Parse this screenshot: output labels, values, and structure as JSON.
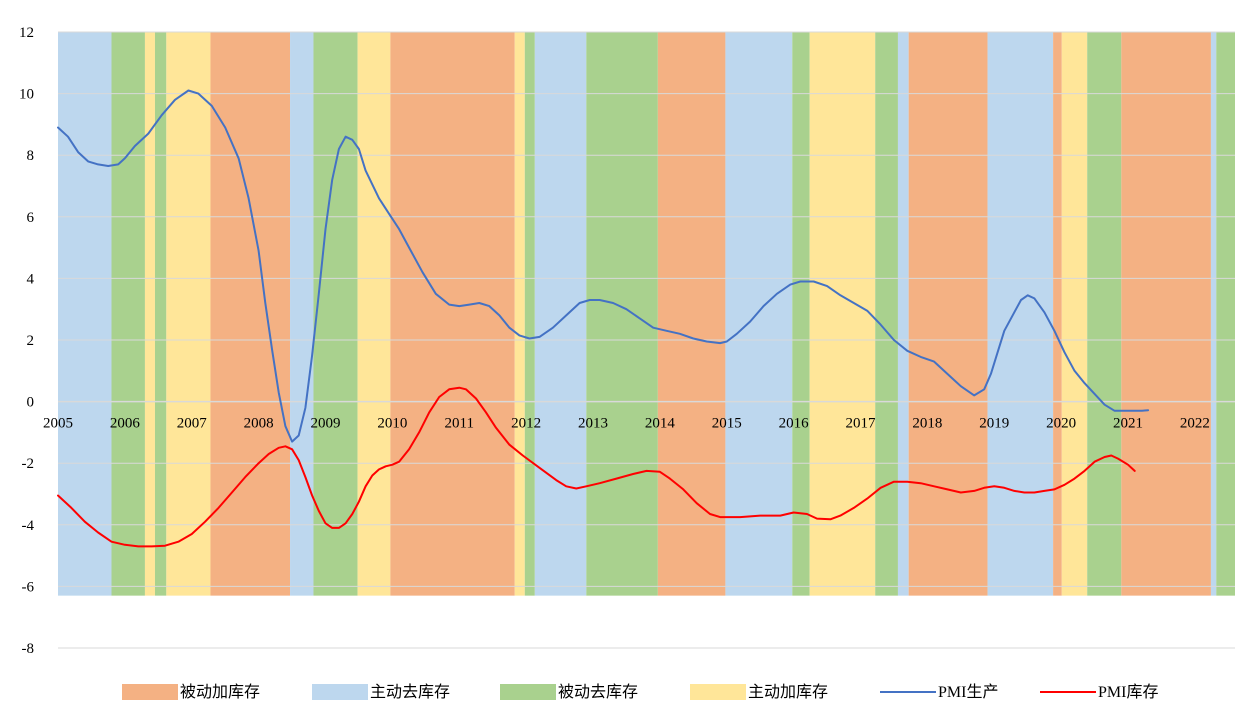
{
  "chart_data": {
    "type": "line",
    "title": "",
    "xlabel": "",
    "ylabel": "",
    "x_range": [
      2005.0,
      2022.6
    ],
    "ylim": [
      -8,
      12
    ],
    "y_ticks": [
      12,
      10,
      8,
      6,
      4,
      2,
      0,
      -2,
      -4,
      -6,
      -8
    ],
    "x_ticks": [
      "2005",
      "2006",
      "2007",
      "2008",
      "2009",
      "2010",
      "2011",
      "2012",
      "2013",
      "2014",
      "2015",
      "2016",
      "2017",
      "2018",
      "2019",
      "2020",
      "2021",
      "2022"
    ],
    "colors": {
      "passive_build": "#F4B183",
      "active_destock": "#BDD7EE",
      "passive_destock": "#A9D18E",
      "active_build": "#FFE699",
      "pmi_production": "#4472C4",
      "pmi_inventory": "#FF0000"
    },
    "phases": [
      {
        "start": 2005.0,
        "end": 2005.8,
        "phase": "active_destock"
      },
      {
        "start": 2005.8,
        "end": 2006.3,
        "phase": "passive_destock"
      },
      {
        "start": 2006.3,
        "end": 2006.45,
        "phase": "active_build"
      },
      {
        "start": 2006.45,
        "end": 2006.62,
        "phase": "passive_destock"
      },
      {
        "start": 2006.62,
        "end": 2007.28,
        "phase": "active_build"
      },
      {
        "start": 2007.28,
        "end": 2008.47,
        "phase": "passive_build"
      },
      {
        "start": 2008.47,
        "end": 2008.82,
        "phase": "active_destock"
      },
      {
        "start": 2008.82,
        "end": 2009.48,
        "phase": "passive_destock"
      },
      {
        "start": 2009.48,
        "end": 2009.97,
        "phase": "active_build"
      },
      {
        "start": 2009.97,
        "end": 2011.83,
        "phase": "passive_build"
      },
      {
        "start": 2011.83,
        "end": 2011.98,
        "phase": "active_build"
      },
      {
        "start": 2011.98,
        "end": 2012.13,
        "phase": "passive_destock"
      },
      {
        "start": 2012.13,
        "end": 2012.9,
        "phase": "active_destock"
      },
      {
        "start": 2012.9,
        "end": 2013.97,
        "phase": "passive_destock"
      },
      {
        "start": 2013.97,
        "end": 2014.98,
        "phase": "passive_build"
      },
      {
        "start": 2014.98,
        "end": 2015.98,
        "phase": "active_destock"
      },
      {
        "start": 2015.98,
        "end": 2016.24,
        "phase": "passive_destock"
      },
      {
        "start": 2016.24,
        "end": 2017.22,
        "phase": "active_build"
      },
      {
        "start": 2017.22,
        "end": 2017.56,
        "phase": "passive_destock"
      },
      {
        "start": 2017.56,
        "end": 2017.72,
        "phase": "active_destock"
      },
      {
        "start": 2017.72,
        "end": 2018.9,
        "phase": "passive_build"
      },
      {
        "start": 2018.9,
        "end": 2019.88,
        "phase": "active_destock"
      },
      {
        "start": 2019.88,
        "end": 2020.01,
        "phase": "passive_build"
      },
      {
        "start": 2020.01,
        "end": 2020.39,
        "phase": "active_build"
      },
      {
        "start": 2020.39,
        "end": 2020.9,
        "phase": "passive_destock"
      },
      {
        "start": 2020.9,
        "end": 2022.24,
        "phase": "passive_build"
      },
      {
        "start": 2022.24,
        "end": 2022.32,
        "phase": "active_destock"
      },
      {
        "start": 2022.32,
        "end": 2022.6,
        "phase": "passive_destock"
      }
    ],
    "series": [
      {
        "name": "PMI生产",
        "key": "pmi_production",
        "points": [
          [
            2005.0,
            8.9
          ],
          [
            2005.15,
            8.6
          ],
          [
            2005.3,
            8.1
          ],
          [
            2005.45,
            7.8
          ],
          [
            2005.6,
            7.7
          ],
          [
            2005.75,
            7.65
          ],
          [
            2005.9,
            7.7
          ],
          [
            2006.0,
            7.9
          ],
          [
            2006.15,
            8.3
          ],
          [
            2006.35,
            8.7
          ],
          [
            2006.55,
            9.3
          ],
          [
            2006.75,
            9.8
          ],
          [
            2006.95,
            10.1
          ],
          [
            2007.1,
            10.0
          ],
          [
            2007.3,
            9.6
          ],
          [
            2007.5,
            8.9
          ],
          [
            2007.7,
            7.9
          ],
          [
            2007.85,
            6.6
          ],
          [
            2008.0,
            4.9
          ],
          [
            2008.1,
            3.2
          ],
          [
            2008.2,
            1.7
          ],
          [
            2008.3,
            0.3
          ],
          [
            2008.4,
            -0.8
          ],
          [
            2008.5,
            -1.3
          ],
          [
            2008.6,
            -1.1
          ],
          [
            2008.7,
            -0.2
          ],
          [
            2008.8,
            1.5
          ],
          [
            2008.9,
            3.5
          ],
          [
            2009.0,
            5.6
          ],
          [
            2009.1,
            7.2
          ],
          [
            2009.2,
            8.2
          ],
          [
            2009.3,
            8.6
          ],
          [
            2009.4,
            8.5
          ],
          [
            2009.5,
            8.2
          ],
          [
            2009.6,
            7.5
          ],
          [
            2009.8,
            6.6
          ],
          [
            2009.95,
            6.1
          ],
          [
            2010.1,
            5.6
          ],
          [
            2010.25,
            5.0
          ],
          [
            2010.45,
            4.2
          ],
          [
            2010.65,
            3.5
          ],
          [
            2010.85,
            3.15
          ],
          [
            2011.0,
            3.1
          ],
          [
            2011.15,
            3.15
          ],
          [
            2011.3,
            3.2
          ],
          [
            2011.45,
            3.1
          ],
          [
            2011.6,
            2.8
          ],
          [
            2011.75,
            2.4
          ],
          [
            2011.9,
            2.15
          ],
          [
            2012.05,
            2.05
          ],
          [
            2012.2,
            2.1
          ],
          [
            2012.4,
            2.4
          ],
          [
            2012.6,
            2.8
          ],
          [
            2012.8,
            3.2
          ],
          [
            2012.95,
            3.3
          ],
          [
            2013.1,
            3.3
          ],
          [
            2013.3,
            3.2
          ],
          [
            2013.5,
            3.0
          ],
          [
            2013.7,
            2.7
          ],
          [
            2013.9,
            2.4
          ],
          [
            2014.1,
            2.3
          ],
          [
            2014.3,
            2.2
          ],
          [
            2014.5,
            2.05
          ],
          [
            2014.7,
            1.95
          ],
          [
            2014.9,
            1.9
          ],
          [
            2015.0,
            1.95
          ],
          [
            2015.15,
            2.2
          ],
          [
            2015.35,
            2.6
          ],
          [
            2015.55,
            3.1
          ],
          [
            2015.75,
            3.5
          ],
          [
            2015.95,
            3.8
          ],
          [
            2016.1,
            3.9
          ],
          [
            2016.3,
            3.9
          ],
          [
            2016.5,
            3.75
          ],
          [
            2016.7,
            3.45
          ],
          [
            2016.9,
            3.2
          ],
          [
            2017.1,
            2.95
          ],
          [
            2017.3,
            2.5
          ],
          [
            2017.5,
            2.0
          ],
          [
            2017.7,
            1.65
          ],
          [
            2017.9,
            1.45
          ],
          [
            2018.1,
            1.3
          ],
          [
            2018.3,
            0.9
          ],
          [
            2018.5,
            0.5
          ],
          [
            2018.7,
            0.2
          ],
          [
            2018.85,
            0.4
          ],
          [
            2018.95,
            0.9
          ],
          [
            2019.05,
            1.6
          ],
          [
            2019.15,
            2.3
          ],
          [
            2019.3,
            2.9
          ],
          [
            2019.4,
            3.3
          ],
          [
            2019.5,
            3.45
          ],
          [
            2019.6,
            3.35
          ],
          [
            2019.75,
            2.9
          ],
          [
            2019.9,
            2.3
          ],
          [
            2020.05,
            1.6
          ],
          [
            2020.2,
            1.0
          ],
          [
            2020.35,
            0.6
          ],
          [
            2020.5,
            0.25
          ],
          [
            2020.65,
            -0.1
          ],
          [
            2020.8,
            -0.3
          ],
          [
            2021.0,
            -0.3
          ],
          [
            2021.2,
            -0.3
          ],
          [
            2021.3,
            -0.28
          ]
        ]
      },
      {
        "name": "PMI库存",
        "key": "pmi_inventory",
        "points": [
          [
            2005.0,
            -3.05
          ],
          [
            2005.2,
            -3.45
          ],
          [
            2005.4,
            -3.9
          ],
          [
            2005.6,
            -4.25
          ],
          [
            2005.8,
            -4.55
          ],
          [
            2006.0,
            -4.65
          ],
          [
            2006.2,
            -4.7
          ],
          [
            2006.4,
            -4.7
          ],
          [
            2006.6,
            -4.68
          ],
          [
            2006.8,
            -4.55
          ],
          [
            2007.0,
            -4.3
          ],
          [
            2007.2,
            -3.9
          ],
          [
            2007.4,
            -3.45
          ],
          [
            2007.6,
            -2.95
          ],
          [
            2007.8,
            -2.45
          ],
          [
            2008.0,
            -2.0
          ],
          [
            2008.15,
            -1.7
          ],
          [
            2008.3,
            -1.5
          ],
          [
            2008.4,
            -1.45
          ],
          [
            2008.5,
            -1.55
          ],
          [
            2008.6,
            -1.9
          ],
          [
            2008.7,
            -2.45
          ],
          [
            2008.8,
            -3.05
          ],
          [
            2008.9,
            -3.55
          ],
          [
            2009.0,
            -3.95
          ],
          [
            2009.1,
            -4.1
          ],
          [
            2009.2,
            -4.1
          ],
          [
            2009.3,
            -3.95
          ],
          [
            2009.4,
            -3.65
          ],
          [
            2009.5,
            -3.25
          ],
          [
            2009.6,
            -2.75
          ],
          [
            2009.7,
            -2.4
          ],
          [
            2009.8,
            -2.2
          ],
          [
            2009.9,
            -2.1
          ],
          [
            2010.0,
            -2.05
          ],
          [
            2010.1,
            -1.95
          ],
          [
            2010.25,
            -1.55
          ],
          [
            2010.4,
            -1.0
          ],
          [
            2010.55,
            -0.35
          ],
          [
            2010.7,
            0.15
          ],
          [
            2010.85,
            0.4
          ],
          [
            2011.0,
            0.45
          ],
          [
            2011.1,
            0.4
          ],
          [
            2011.25,
            0.1
          ],
          [
            2011.4,
            -0.35
          ],
          [
            2011.55,
            -0.85
          ],
          [
            2011.75,
            -1.4
          ],
          [
            2011.95,
            -1.75
          ],
          [
            2012.2,
            -2.15
          ],
          [
            2012.45,
            -2.55
          ],
          [
            2012.6,
            -2.75
          ],
          [
            2012.75,
            -2.82
          ],
          [
            2012.9,
            -2.75
          ],
          [
            2013.1,
            -2.65
          ],
          [
            2013.35,
            -2.5
          ],
          [
            2013.6,
            -2.35
          ],
          [
            2013.8,
            -2.25
          ],
          [
            2014.0,
            -2.28
          ],
          [
            2014.15,
            -2.5
          ],
          [
            2014.35,
            -2.85
          ],
          [
            2014.55,
            -3.3
          ],
          [
            2014.75,
            -3.65
          ],
          [
            2014.9,
            -3.75
          ],
          [
            2015.2,
            -3.75
          ],
          [
            2015.5,
            -3.7
          ],
          [
            2015.8,
            -3.7
          ],
          [
            2016.0,
            -3.6
          ],
          [
            2016.2,
            -3.65
          ],
          [
            2016.35,
            -3.8
          ],
          [
            2016.55,
            -3.82
          ],
          [
            2016.7,
            -3.7
          ],
          [
            2016.9,
            -3.45
          ],
          [
            2017.1,
            -3.15
          ],
          [
            2017.3,
            -2.8
          ],
          [
            2017.5,
            -2.6
          ],
          [
            2017.7,
            -2.6
          ],
          [
            2017.9,
            -2.65
          ],
          [
            2018.1,
            -2.75
          ],
          [
            2018.3,
            -2.85
          ],
          [
            2018.5,
            -2.95
          ],
          [
            2018.7,
            -2.9
          ],
          [
            2018.85,
            -2.8
          ],
          [
            2019.0,
            -2.75
          ],
          [
            2019.15,
            -2.8
          ],
          [
            2019.3,
            -2.9
          ],
          [
            2019.45,
            -2.95
          ],
          [
            2019.6,
            -2.95
          ],
          [
            2019.75,
            -2.9
          ],
          [
            2019.9,
            -2.85
          ],
          [
            2020.05,
            -2.7
          ],
          [
            2020.2,
            -2.5
          ],
          [
            2020.35,
            -2.25
          ],
          [
            2020.5,
            -1.95
          ],
          [
            2020.65,
            -1.8
          ],
          [
            2020.75,
            -1.75
          ],
          [
            2020.85,
            -1.85
          ],
          [
            2021.0,
            -2.05
          ],
          [
            2021.1,
            -2.25
          ]
        ]
      }
    ],
    "legend": [
      {
        "key": "passive_build",
        "label": "被动加库存",
        "kind": "patch"
      },
      {
        "key": "active_destock",
        "label": "主动去库存",
        "kind": "patch"
      },
      {
        "key": "passive_destock",
        "label": "被动去库存",
        "kind": "patch"
      },
      {
        "key": "active_build",
        "label": "主动加库存",
        "kind": "patch"
      },
      {
        "key": "pmi_production",
        "label": "PMI生产",
        "kind": "line"
      },
      {
        "key": "pmi_inventory",
        "label": "PMI库存",
        "kind": "line"
      }
    ]
  }
}
